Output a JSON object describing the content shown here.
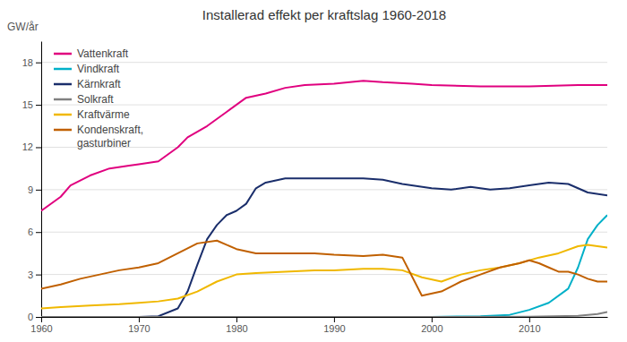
{
  "chart_data": {
    "type": "line",
    "title": "Installerad effekt per kraftslag 1960-2018",
    "ylabel": "GW/år",
    "xlim": [
      1960,
      2018
    ],
    "ylim": [
      0,
      19.5
    ],
    "xticks": [
      1960,
      1970,
      1980,
      1990,
      2000,
      2010
    ],
    "yticks": [
      0,
      3,
      6,
      9,
      12,
      15,
      18
    ],
    "grid": true,
    "legend": "upper left",
    "series": [
      {
        "name": "Vattenkraft",
        "color": "#e0007f",
        "x": [
          1960,
          1962,
          1963,
          1965,
          1967,
          1969,
          1970,
          1972,
          1974,
          1975,
          1977,
          1979,
          1981,
          1983,
          1985,
          1987,
          1990,
          1993,
          1995,
          1998,
          2000,
          2005,
          2010,
          2015,
          2018
        ],
        "values": [
          7.5,
          8.5,
          9.3,
          10.0,
          10.5,
          10.7,
          10.8,
          11.0,
          12.0,
          12.7,
          13.5,
          14.5,
          15.5,
          15.8,
          16.2,
          16.4,
          16.5,
          16.7,
          16.6,
          16.5,
          16.4,
          16.3,
          16.3,
          16.4,
          16.4
        ]
      },
      {
        "name": "Vindkraft",
        "color": "#00b0c8",
        "x": [
          1960,
          1990,
          1995,
          2000,
          2005,
          2008,
          2010,
          2012,
          2014,
          2015,
          2016,
          2017,
          2018
        ],
        "values": [
          0.0,
          0.0,
          0.0,
          0.0,
          0.05,
          0.15,
          0.5,
          1.0,
          2.0,
          3.5,
          5.5,
          6.5,
          7.2
        ]
      },
      {
        "name": "Kärnkraft",
        "color": "#1a2e6b",
        "x": [
          1960,
          1970,
          1972,
          1974,
          1975,
          1976,
          1977,
          1978,
          1979,
          1980,
          1981,
          1982,
          1983,
          1985,
          1990,
          1993,
          1995,
          1997,
          2000,
          2002,
          2004,
          2006,
          2008,
          2010,
          2012,
          2014,
          2016,
          2018
        ],
        "values": [
          0.0,
          0.0,
          0.05,
          0.6,
          1.8,
          3.7,
          5.5,
          6.5,
          7.2,
          7.5,
          8.0,
          9.1,
          9.5,
          9.8,
          9.8,
          9.8,
          9.7,
          9.4,
          9.1,
          9.0,
          9.2,
          9.0,
          9.1,
          9.3,
          9.5,
          9.4,
          8.8,
          8.6
        ]
      },
      {
        "name": "Solkraft",
        "color": "#808080",
        "x": [
          1960,
          1990,
          2000,
          2010,
          2015,
          2017,
          2018
        ],
        "values": [
          0.0,
          0.0,
          0.0,
          0.01,
          0.08,
          0.2,
          0.35
        ]
      },
      {
        "name": "Kraftvärme",
        "color": "#f0b800",
        "x": [
          1960,
          1962,
          1965,
          1968,
          1970,
          1972,
          1974,
          1976,
          1978,
          1980,
          1982,
          1985,
          1988,
          1990,
          1993,
          1995,
          1997,
          1999,
          2001,
          2003,
          2005,
          2007,
          2009,
          2011,
          2013,
          2015,
          2016,
          2017,
          2018
        ],
        "values": [
          0.6,
          0.7,
          0.8,
          0.9,
          1.0,
          1.1,
          1.3,
          1.8,
          2.5,
          3.0,
          3.1,
          3.2,
          3.3,
          3.3,
          3.4,
          3.4,
          3.3,
          2.8,
          2.5,
          3.0,
          3.3,
          3.5,
          3.8,
          4.2,
          4.5,
          5.0,
          5.1,
          5.0,
          4.9
        ]
      },
      {
        "name": "Kondenskraft,\ngasturbiner",
        "color": "#c06000",
        "x": [
          1960,
          1962,
          1964,
          1966,
          1968,
          1970,
          1972,
          1974,
          1976,
          1978,
          1980,
          1982,
          1985,
          1988,
          1990,
          1993,
          1995,
          1997,
          1999,
          2001,
          2003,
          2005,
          2007,
          2009,
          2010,
          2011,
          2012,
          2013,
          2014,
          2015,
          2016,
          2017,
          2018
        ],
        "values": [
          2.0,
          2.3,
          2.7,
          3.0,
          3.3,
          3.5,
          3.8,
          4.5,
          5.2,
          5.4,
          4.8,
          4.5,
          4.5,
          4.5,
          4.4,
          4.3,
          4.4,
          4.2,
          1.5,
          1.8,
          2.5,
          3.0,
          3.5,
          3.8,
          4.0,
          3.8,
          3.5,
          3.2,
          3.2,
          3.0,
          2.7,
          2.5,
          2.5
        ]
      }
    ]
  }
}
